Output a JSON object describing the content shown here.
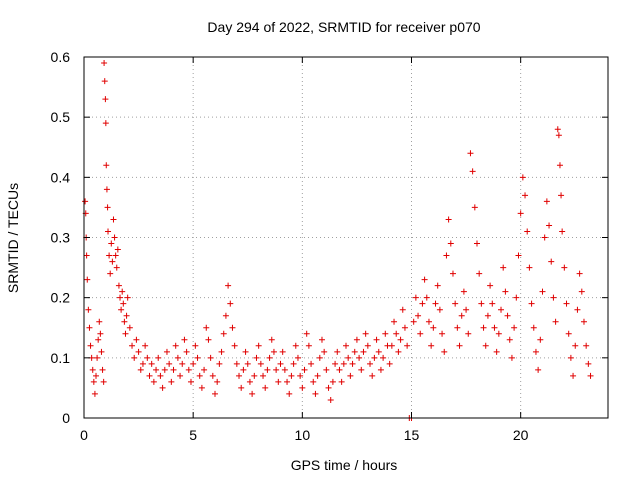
{
  "chart_data": {
    "type": "scatter",
    "title": "Day 294 of 2022, SRMTID for receiver p070",
    "xlabel": "GPS time / hours",
    "ylabel": "SRMTID / TECUs",
    "xlim": [
      0,
      24
    ],
    "ylim": [
      0,
      0.6
    ],
    "x_ticks": [
      0,
      5,
      10,
      15,
      20
    ],
    "y_ticks": [
      0,
      0.1,
      0.2,
      0.3,
      0.4,
      0.5,
      0.6
    ],
    "x_tick_labels": [
      "0",
      "5",
      "10",
      "15",
      "20"
    ],
    "y_tick_labels": [
      "0",
      "0.1",
      "0.2",
      "0.3",
      "0.4",
      "0.5",
      "0.6"
    ],
    "grid": true,
    "marker": "plus",
    "color": "#e00000",
    "series": [
      {
        "name": "SRMTID",
        "points": [
          [
            0.05,
            0.36
          ],
          [
            0.08,
            0.34
          ],
          [
            0.1,
            0.3
          ],
          [
            0.12,
            0.27
          ],
          [
            0.15,
            0.23
          ],
          [
            0.2,
            0.18
          ],
          [
            0.25,
            0.15
          ],
          [
            0.3,
            0.12
          ],
          [
            0.35,
            0.1
          ],
          [
            0.4,
            0.08
          ],
          [
            0.45,
            0.06
          ],
          [
            0.5,
            0.04
          ],
          [
            0.55,
            0.07
          ],
          [
            0.6,
            0.1
          ],
          [
            0.65,
            0.13
          ],
          [
            0.7,
            0.16
          ],
          [
            0.75,
            0.14
          ],
          [
            0.8,
            0.11
          ],
          [
            0.85,
            0.08
          ],
          [
            0.9,
            0.06
          ],
          [
            0.92,
            0.59
          ],
          [
            0.95,
            0.56
          ],
          [
            0.98,
            0.53
          ],
          [
            1.0,
            0.49
          ],
          [
            1.02,
            0.42
          ],
          [
            1.05,
            0.38
          ],
          [
            1.08,
            0.35
          ],
          [
            1.1,
            0.31
          ],
          [
            1.15,
            0.27
          ],
          [
            1.2,
            0.24
          ],
          [
            1.25,
            0.29
          ],
          [
            1.3,
            0.26
          ],
          [
            1.35,
            0.33
          ],
          [
            1.4,
            0.3
          ],
          [
            1.45,
            0.27
          ],
          [
            1.5,
            0.25
          ],
          [
            1.55,
            0.28
          ],
          [
            1.6,
            0.22
          ],
          [
            1.65,
            0.2
          ],
          [
            1.7,
            0.18
          ],
          [
            1.75,
            0.21
          ],
          [
            1.8,
            0.19
          ],
          [
            1.85,
            0.16
          ],
          [
            1.9,
            0.14
          ],
          [
            1.95,
            0.17
          ],
          [
            2.0,
            0.2
          ],
          [
            2.1,
            0.15
          ],
          [
            2.2,
            0.12
          ],
          [
            2.3,
            0.1
          ],
          [
            2.4,
            0.13
          ],
          [
            2.5,
            0.11
          ],
          [
            2.6,
            0.08
          ],
          [
            2.7,
            0.09
          ],
          [
            2.8,
            0.12
          ],
          [
            2.9,
            0.1
          ],
          [
            3.0,
            0.07
          ],
          [
            3.1,
            0.09
          ],
          [
            3.2,
            0.06
          ],
          [
            3.3,
            0.08
          ],
          [
            3.4,
            0.1
          ],
          [
            3.5,
            0.07
          ],
          [
            3.6,
            0.05
          ],
          [
            3.7,
            0.08
          ],
          [
            3.8,
            0.11
          ],
          [
            3.9,
            0.09
          ],
          [
            4.0,
            0.06
          ],
          [
            4.1,
            0.08
          ],
          [
            4.2,
            0.12
          ],
          [
            4.3,
            0.1
          ],
          [
            4.4,
            0.07
          ],
          [
            4.5,
            0.09
          ],
          [
            4.6,
            0.13
          ],
          [
            4.7,
            0.11
          ],
          [
            4.8,
            0.08
          ],
          [
            4.9,
            0.06
          ],
          [
            5.0,
            0.09
          ],
          [
            5.1,
            0.12
          ],
          [
            5.2,
            0.1
          ],
          [
            5.3,
            0.07
          ],
          [
            5.4,
            0.05
          ],
          [
            5.5,
            0.08
          ],
          [
            5.6,
            0.15
          ],
          [
            5.7,
            0.13
          ],
          [
            5.8,
            0.1
          ],
          [
            5.9,
            0.07
          ],
          [
            6.0,
            0.04
          ],
          [
            6.1,
            0.06
          ],
          [
            6.2,
            0.09
          ],
          [
            6.3,
            0.11
          ],
          [
            6.4,
            0.14
          ],
          [
            6.5,
            0.17
          ],
          [
            6.6,
            0.22
          ],
          [
            6.7,
            0.19
          ],
          [
            6.8,
            0.15
          ],
          [
            6.9,
            0.12
          ],
          [
            7.0,
            0.09
          ],
          [
            7.1,
            0.07
          ],
          [
            7.2,
            0.05
          ],
          [
            7.3,
            0.08
          ],
          [
            7.4,
            0.11
          ],
          [
            7.5,
            0.09
          ],
          [
            7.6,
            0.06
          ],
          [
            7.7,
            0.04
          ],
          [
            7.8,
            0.07
          ],
          [
            7.9,
            0.1
          ],
          [
            8.0,
            0.12
          ],
          [
            8.1,
            0.09
          ],
          [
            8.2,
            0.07
          ],
          [
            8.3,
            0.05
          ],
          [
            8.4,
            0.08
          ],
          [
            8.5,
            0.1
          ],
          [
            8.6,
            0.13
          ],
          [
            8.7,
            0.11
          ],
          [
            8.8,
            0.08
          ],
          [
            8.9,
            0.06
          ],
          [
            9.0,
            0.09
          ],
          [
            9.1,
            0.11
          ],
          [
            9.2,
            0.08
          ],
          [
            9.3,
            0.06
          ],
          [
            9.4,
            0.04
          ],
          [
            9.5,
            0.07
          ],
          [
            9.6,
            0.09
          ],
          [
            9.7,
            0.12
          ],
          [
            9.8,
            0.1
          ],
          [
            9.9,
            0.07
          ],
          [
            10.0,
            0.05
          ],
          [
            10.1,
            0.08
          ],
          [
            10.2,
            0.14
          ],
          [
            10.3,
            0.12
          ],
          [
            10.4,
            0.09
          ],
          [
            10.5,
            0.06
          ],
          [
            10.6,
            0.04
          ],
          [
            10.7,
            0.07
          ],
          [
            10.8,
            0.1
          ],
          [
            10.9,
            0.13
          ],
          [
            11.0,
            0.11
          ],
          [
            11.1,
            0.08
          ],
          [
            11.2,
            0.05
          ],
          [
            11.3,
            0.03
          ],
          [
            11.4,
            0.06
          ],
          [
            11.5,
            0.09
          ],
          [
            11.6,
            0.11
          ],
          [
            11.7,
            0.08
          ],
          [
            11.8,
            0.06
          ],
          [
            11.9,
            0.09
          ],
          [
            12.0,
            0.12
          ],
          [
            12.1,
            0.1
          ],
          [
            12.2,
            0.07
          ],
          [
            12.3,
            0.09
          ],
          [
            12.4,
            0.11
          ],
          [
            12.5,
            0.13
          ],
          [
            12.6,
            0.1
          ],
          [
            12.7,
            0.08
          ],
          [
            12.8,
            0.11
          ],
          [
            12.9,
            0.14
          ],
          [
            13.0,
            0.12
          ],
          [
            13.1,
            0.09
          ],
          [
            13.2,
            0.07
          ],
          [
            13.3,
            0.1
          ],
          [
            13.4,
            0.13
          ],
          [
            13.5,
            0.11
          ],
          [
            13.6,
            0.08
          ],
          [
            13.7,
            0.1
          ],
          [
            13.8,
            0.14
          ],
          [
            13.9,
            0.12
          ],
          [
            14.0,
            0.09
          ],
          [
            14.1,
            0.12
          ],
          [
            14.2,
            0.16
          ],
          [
            14.3,
            0.14
          ],
          [
            14.4,
            0.11
          ],
          [
            14.5,
            0.13
          ],
          [
            14.6,
            0.18
          ],
          [
            14.7,
            0.15
          ],
          [
            14.8,
            0.12
          ],
          [
            14.9,
            0.0
          ],
          [
            15.0,
            0.0
          ],
          [
            15.1,
            0.16
          ],
          [
            15.2,
            0.2
          ],
          [
            15.3,
            0.17
          ],
          [
            15.4,
            0.14
          ],
          [
            15.5,
            0.19
          ],
          [
            15.6,
            0.23
          ],
          [
            15.7,
            0.2
          ],
          [
            15.8,
            0.16
          ],
          [
            15.9,
            0.12
          ],
          [
            16.0,
            0.15
          ],
          [
            16.1,
            0.19
          ],
          [
            16.2,
            0.22
          ],
          [
            16.3,
            0.18
          ],
          [
            16.4,
            0.14
          ],
          [
            16.5,
            0.11
          ],
          [
            16.6,
            0.27
          ],
          [
            16.7,
            0.33
          ],
          [
            16.8,
            0.29
          ],
          [
            16.9,
            0.24
          ],
          [
            17.0,
            0.19
          ],
          [
            17.1,
            0.15
          ],
          [
            17.2,
            0.12
          ],
          [
            17.3,
            0.17
          ],
          [
            17.4,
            0.21
          ],
          [
            17.5,
            0.18
          ],
          [
            17.6,
            0.14
          ],
          [
            17.7,
            0.44
          ],
          [
            17.8,
            0.41
          ],
          [
            17.9,
            0.35
          ],
          [
            18.0,
            0.29
          ],
          [
            18.1,
            0.24
          ],
          [
            18.2,
            0.19
          ],
          [
            18.3,
            0.15
          ],
          [
            18.4,
            0.12
          ],
          [
            18.5,
            0.17
          ],
          [
            18.6,
            0.22
          ],
          [
            18.7,
            0.19
          ],
          [
            18.8,
            0.15
          ],
          [
            18.9,
            0.11
          ],
          [
            19.0,
            0.14
          ],
          [
            19.1,
            0.18
          ],
          [
            19.2,
            0.25
          ],
          [
            19.3,
            0.21
          ],
          [
            19.4,
            0.17
          ],
          [
            19.5,
            0.13
          ],
          [
            19.6,
            0.1
          ],
          [
            19.7,
            0.15
          ],
          [
            19.8,
            0.2
          ],
          [
            19.9,
            0.27
          ],
          [
            20.0,
            0.34
          ],
          [
            20.1,
            0.4
          ],
          [
            20.2,
            0.37
          ],
          [
            20.3,
            0.31
          ],
          [
            20.4,
            0.25
          ],
          [
            20.5,
            0.19
          ],
          [
            20.6,
            0.15
          ],
          [
            20.7,
            0.11
          ],
          [
            20.8,
            0.08
          ],
          [
            20.9,
            0.13
          ],
          [
            21.0,
            0.21
          ],
          [
            21.1,
            0.3
          ],
          [
            21.2,
            0.36
          ],
          [
            21.3,
            0.32
          ],
          [
            21.4,
            0.26
          ],
          [
            21.5,
            0.2
          ],
          [
            21.6,
            0.16
          ],
          [
            21.7,
            0.48
          ],
          [
            21.75,
            0.47
          ],
          [
            21.8,
            0.42
          ],
          [
            21.85,
            0.37
          ],
          [
            21.9,
            0.31
          ],
          [
            22.0,
            0.25
          ],
          [
            22.1,
            0.19
          ],
          [
            22.2,
            0.14
          ],
          [
            22.3,
            0.1
          ],
          [
            22.4,
            0.07
          ],
          [
            22.5,
            0.12
          ],
          [
            22.6,
            0.18
          ],
          [
            22.7,
            0.24
          ],
          [
            22.8,
            0.21
          ],
          [
            22.9,
            0.16
          ],
          [
            23.0,
            0.12
          ],
          [
            23.1,
            0.09
          ],
          [
            23.2,
            0.07
          ]
        ]
      }
    ]
  }
}
